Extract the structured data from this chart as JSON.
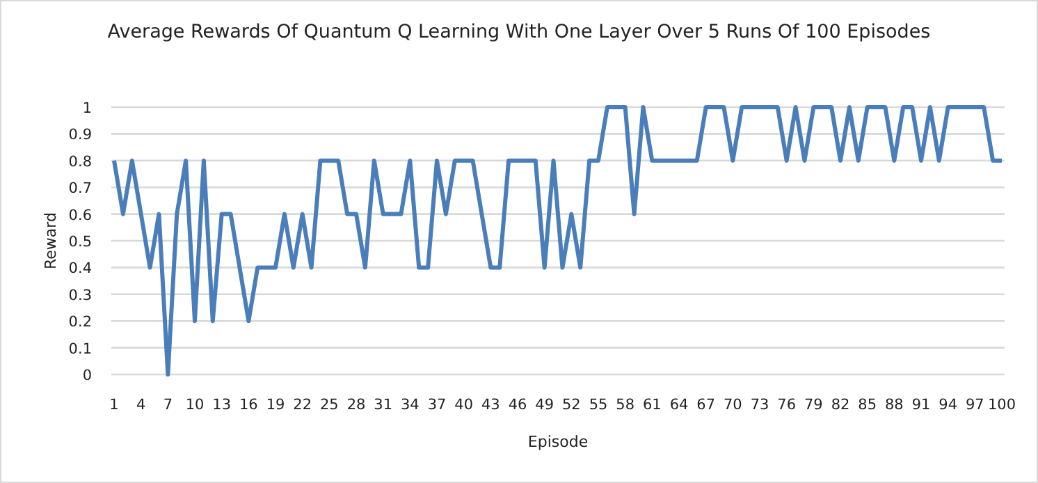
{
  "chart_data": {
    "type": "line",
    "title": "Average Rewards Of Quantum Q Learning With One Layer Over 5 Runs Of 100 Episodes",
    "xlabel": "Episode",
    "ylabel": "Reward",
    "categories": [
      "1",
      null,
      null,
      "4",
      null,
      null,
      "7",
      null,
      null,
      "10",
      null,
      null,
      "13",
      null,
      null,
      "16",
      null,
      null,
      "19",
      null,
      null,
      "22",
      null,
      null,
      "25",
      null,
      null,
      "28",
      null,
      null,
      "31",
      null,
      null,
      "34",
      null,
      null,
      "37",
      null,
      null,
      "40",
      null,
      null,
      "43",
      null,
      null,
      "46",
      null,
      null,
      "49",
      null,
      null,
      "52",
      null,
      null,
      "55",
      null,
      null,
      "58",
      null,
      null,
      "61",
      null,
      null,
      "64",
      null,
      null,
      "67",
      null,
      null,
      "70",
      null,
      null,
      "73",
      null,
      null,
      "76",
      null,
      null,
      "79",
      null,
      null,
      "82",
      null,
      null,
      "85",
      null,
      null,
      "88",
      null,
      null,
      "91",
      null,
      null,
      "94",
      null,
      null,
      "97",
      null,
      null,
      "100"
    ],
    "series": [
      {
        "color": "#4a7ebb",
        "values": [
          0.8,
          0.6,
          0.8,
          0.6,
          0.4,
          0.6,
          0,
          0.6,
          0.8,
          0.2,
          0.8,
          0.2,
          0.6,
          0.6,
          0.4,
          0.2,
          0.4,
          0.4,
          0.4,
          0.6,
          0.4,
          0.6,
          0.4,
          0.8,
          0.8,
          0.8,
          0.6,
          0.6,
          0.4,
          0.8,
          0.6,
          0.6,
          0.6,
          0.8,
          0.4,
          0.4,
          0.8,
          0.6,
          0.8,
          0.8,
          0.8,
          0.6,
          0.4,
          0.4,
          0.8,
          0.8,
          0.8,
          0.8,
          0.4,
          0.8,
          0.4,
          0.6,
          0.4,
          0.8,
          0.8,
          1,
          1,
          1,
          0.6,
          1,
          0.8,
          0.8,
          0.8,
          0.8,
          0.8,
          0.8,
          1,
          1,
          1,
          0.8,
          1,
          1,
          1,
          1,
          1,
          0.8,
          1,
          0.8,
          1,
          1,
          1,
          0.8,
          1,
          0.8,
          1,
          1,
          1,
          0.8,
          1,
          1,
          0.8,
          1,
          0.8,
          1,
          1,
          1,
          1,
          1,
          0.8,
          0.8
        ]
      }
    ],
    "ylim": [
      0,
      1
    ],
    "yticks": [
      0,
      0.1,
      0.2,
      0.3,
      0.4,
      0.5,
      0.6,
      0.7,
      0.8,
      0.9,
      1
    ],
    "grid": "y",
    "marker": "none",
    "line_style": "solid"
  }
}
